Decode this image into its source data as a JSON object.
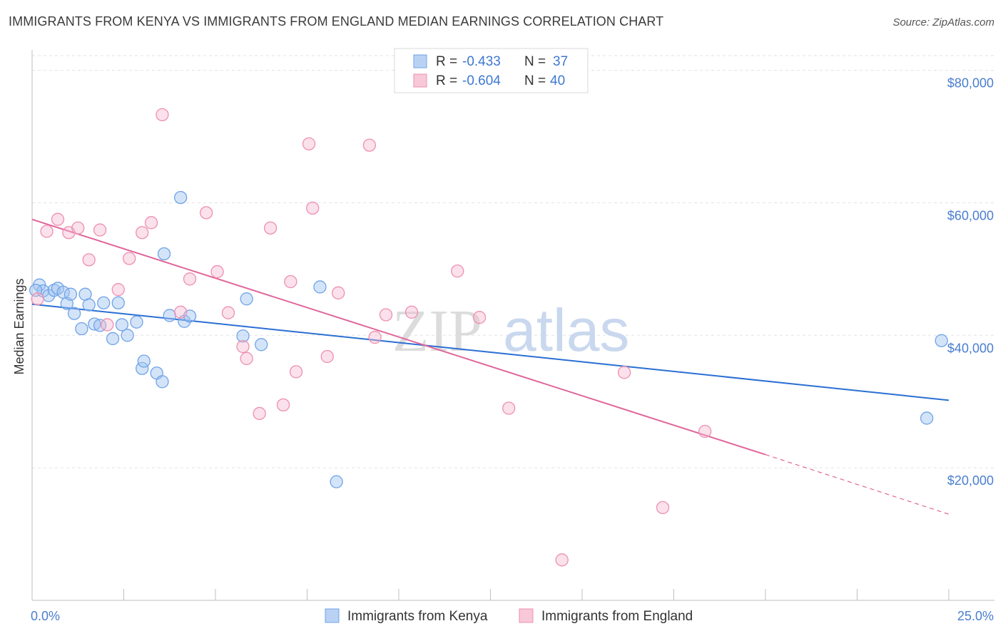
{
  "header": {
    "title": "IMMIGRANTS FROM KENYA VS IMMIGRANTS FROM ENGLAND MEDIAN EARNINGS CORRELATION CHART",
    "source": "Source: ZipAtlas.com"
  },
  "watermark": {
    "zip": "ZIP",
    "atlas": "atlas"
  },
  "legend": {
    "kenya": {
      "r_label": "R =",
      "r_value": "-0.433",
      "n_label": "N =",
      "n_value": "37"
    },
    "england": {
      "r_label": "R =",
      "r_value": "-0.604",
      "n_label": "N =",
      "n_value": "40"
    }
  },
  "chart_data": {
    "type": "scatter",
    "ylabel": "Median Earnings",
    "xlim": [
      0,
      25
    ],
    "ylim": [
      0,
      82000
    ],
    "x_tick_labels": {
      "left": "0.0%",
      "right": "25.0%"
    },
    "y_ticks": [
      20000,
      40000,
      60000,
      80000
    ],
    "y_tick_labels": [
      "$20,000",
      "$40,000",
      "$60,000",
      "$80,000"
    ],
    "grid": true,
    "legend_position": "top-center",
    "colors": {
      "kenya": "#6fa3e8",
      "england": "#ee8fb0",
      "kenya_line": "#2a6fd4",
      "england_line": "#e0669a"
    },
    "series": [
      {
        "name": "Immigrants from Kenya",
        "points": [
          [
            0.2,
            47600
          ],
          [
            0.3,
            46700
          ],
          [
            0.45,
            46000
          ],
          [
            0.6,
            46800
          ],
          [
            0.7,
            47100
          ],
          [
            0.85,
            46500
          ],
          [
            0.95,
            44800
          ],
          [
            1.05,
            46200
          ],
          [
            1.15,
            43300
          ],
          [
            1.35,
            41000
          ],
          [
            1.45,
            46200
          ],
          [
            1.55,
            44600
          ],
          [
            1.7,
            41700
          ],
          [
            1.85,
            41500
          ],
          [
            1.95,
            44900
          ],
          [
            2.2,
            39500
          ],
          [
            2.35,
            44900
          ],
          [
            2.45,
            41600
          ],
          [
            2.6,
            40000
          ],
          [
            2.85,
            42000
          ],
          [
            3.0,
            35000
          ],
          [
            3.05,
            36100
          ],
          [
            3.4,
            34300
          ],
          [
            3.55,
            33000
          ],
          [
            3.6,
            52300
          ],
          [
            3.75,
            43000
          ],
          [
            4.05,
            60800
          ],
          [
            4.15,
            42100
          ],
          [
            4.3,
            42900
          ],
          [
            5.75,
            39900
          ],
          [
            5.85,
            45500
          ],
          [
            6.25,
            38600
          ],
          [
            7.85,
            47300
          ],
          [
            8.3,
            17900
          ],
          [
            24.4,
            27500
          ],
          [
            24.8,
            39200
          ],
          [
            0.1,
            46800
          ]
        ]
      },
      {
        "name": "Immigrants from England",
        "points": [
          [
            0.15,
            45500
          ],
          [
            0.4,
            55700
          ],
          [
            0.7,
            57500
          ],
          [
            1.0,
            55500
          ],
          [
            1.25,
            56200
          ],
          [
            1.55,
            51400
          ],
          [
            1.85,
            55900
          ],
          [
            2.05,
            41600
          ],
          [
            2.35,
            46900
          ],
          [
            2.65,
            51600
          ],
          [
            3.0,
            55500
          ],
          [
            3.25,
            57000
          ],
          [
            3.55,
            73300
          ],
          [
            4.05,
            43500
          ],
          [
            4.3,
            48500
          ],
          [
            4.75,
            58500
          ],
          [
            5.05,
            49600
          ],
          [
            5.35,
            43400
          ],
          [
            5.75,
            38300
          ],
          [
            5.85,
            36500
          ],
          [
            6.2,
            28200
          ],
          [
            6.5,
            56200
          ],
          [
            6.85,
            29500
          ],
          [
            7.05,
            48100
          ],
          [
            7.2,
            34500
          ],
          [
            7.55,
            68900
          ],
          [
            7.65,
            59200
          ],
          [
            8.05,
            36800
          ],
          [
            8.35,
            46400
          ],
          [
            9.2,
            68700
          ],
          [
            9.35,
            39700
          ],
          [
            9.65,
            43100
          ],
          [
            10.35,
            43500
          ],
          [
            11.6,
            49700
          ],
          [
            12.2,
            42700
          ],
          [
            13.0,
            29000
          ],
          [
            14.45,
            6100
          ],
          [
            16.15,
            34400
          ],
          [
            17.2,
            14000
          ],
          [
            18.35,
            25500
          ]
        ]
      }
    ],
    "trend_lines": [
      {
        "name": "Immigrants from Kenya",
        "x": [
          0,
          25
        ],
        "y": [
          44700,
          30200
        ]
      },
      {
        "name": "Immigrants from England",
        "x": [
          0,
          20.0
        ],
        "y": [
          57500,
          22000
        ],
        "dashed_extension_x": [
          20.0,
          25
        ],
        "dashed_extension_y": [
          22000,
          13000
        ]
      }
    ]
  },
  "bottom_legend": {
    "kenya_label": "Immigrants from Kenya",
    "england_label": "Immigrants from England"
  }
}
